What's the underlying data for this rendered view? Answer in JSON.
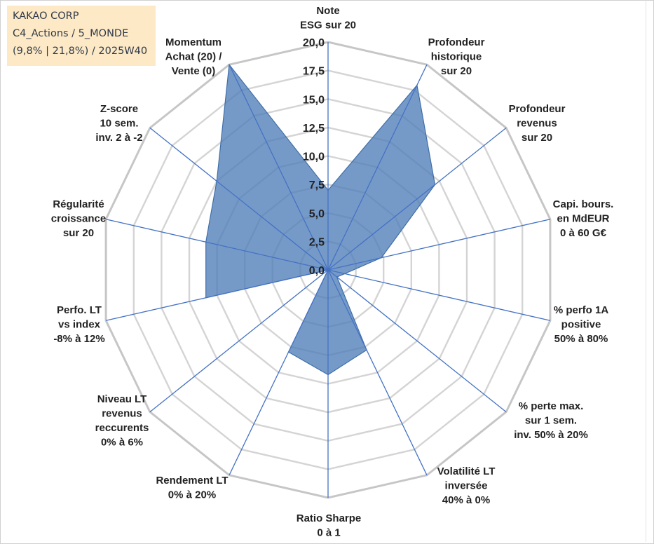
{
  "info_box": {
    "line1": "KAKAO CORP",
    "line2": "C4_Actions / 5_MONDE",
    "line3": "(9,8% | 21,8%) / 2025W40"
  },
  "chart_data": {
    "type": "radar",
    "title": "",
    "rmin": 0,
    "rmax": 20,
    "tick_step": 2.5,
    "tick_labels": [
      "0,0",
      "2,5",
      "5,0",
      "7,5",
      "10,0",
      "12,5",
      "15,0",
      "17,5",
      "20,0"
    ],
    "axes": [
      "Note\nESG sur 20",
      "Profondeur\nhistorique\nsur 20",
      "Profondeur\nrevenus\nsur 20",
      "Capi. bours.\nen MdEUR\n0 à 60 G€",
      "% perfo 1A\npositive\n50% à 80%",
      "% perte max.\nsur 1 sem.\ninv. 50% à 20%",
      "Volatilité LT\ninversée\n40% à 0%",
      "Ratio Sharpe\n0 à 1",
      "Rendement LT\n0% à 20%",
      "Niveau LT\nrevenus\nreccurents\n0% à 6%",
      "Perfo. LT\nvs index\n-8% à 12%",
      "Régularité\ncroissance\nsur 20",
      "Z-score\n10 sem.\ninv. 2 à -2",
      "Momentum\nAchat (20) /\nVente (0)"
    ],
    "series": [
      {
        "name": "KAKAO CORP",
        "values": [
          7.0,
          18.0,
          12.0,
          4.8,
          1.5,
          1.0,
          7.8,
          9.2,
          8.0,
          0.0,
          11.0,
          11.0,
          12.5,
          20.0
        ]
      }
    ],
    "colors": {
      "fill": "#4f7eb8",
      "fill_opacity": 0.78,
      "series_line": "#3f6ea8",
      "spoke": "#4472c4",
      "grid": "#c6c6c6",
      "grid_inner": "#d4d4d4"
    }
  }
}
